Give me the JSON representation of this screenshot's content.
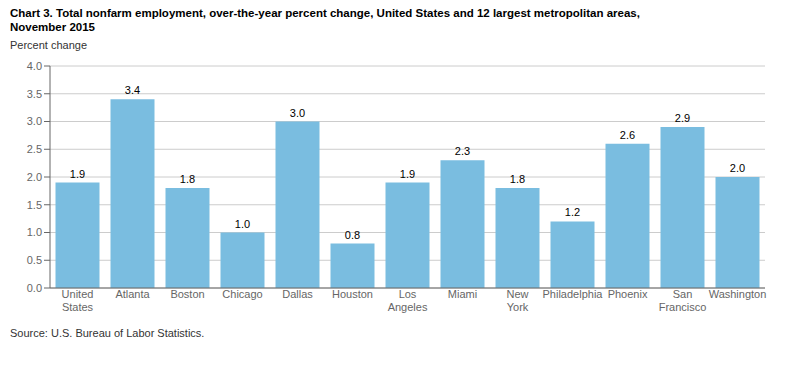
{
  "chart_data": {
    "type": "bar",
    "title": "Chart 3. Total nonfarm employment, over-the-year percent change, United States and 12 largest metropolitan areas,\nNovember 2015",
    "ylabel": "Percent change",
    "source": "Source: U.S. Bureau of Labor Statistics.",
    "categories": [
      "United\nStates",
      "Atlanta",
      "Boston",
      "Chicago",
      "Dallas",
      "Houston",
      "Los\nAngeles",
      "Miami",
      "New\nYork",
      "Philadelphia",
      "Phoenix",
      "San\nFrancisco",
      "Washington"
    ],
    "values": [
      1.9,
      3.4,
      1.8,
      1.0,
      3.0,
      0.8,
      1.9,
      2.3,
      1.8,
      1.2,
      2.6,
      2.9,
      2.0
    ],
    "value_labels": [
      "1.9",
      "3.4",
      "1.8",
      "1.0",
      "3.0",
      "0.8",
      "1.9",
      "2.3",
      "1.8",
      "1.2",
      "2.6",
      "2.9",
      "2.0"
    ],
    "data_labels": true,
    "color": "#7abde0",
    "ylim": [
      0,
      4.0
    ],
    "yticks": [
      {
        "value": 0.0,
        "label": "0.0"
      },
      0.5,
      {
        "value": 1.0,
        "label": "1.0"
      },
      1.5,
      {
        "value": 2.0,
        "label": "2.0"
      },
      2.5,
      {
        "value": 3.0,
        "label": "3.0"
      },
      3.5,
      {
        "value": 4.0,
        "label": "4.0"
      }
    ],
    "grid": true
  }
}
